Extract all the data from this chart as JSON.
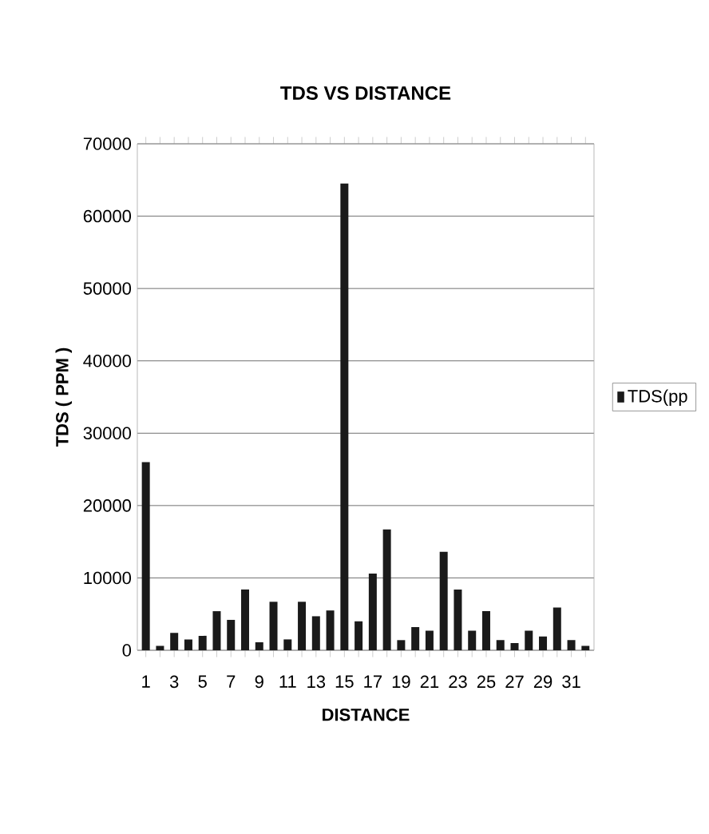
{
  "chart_data": {
    "type": "bar",
    "title": "TDS VS DISTANCE",
    "xlabel": "DISTANCE",
    "ylabel": "TDS ( PPM )",
    "categories": [
      "1",
      null,
      "3",
      null,
      "5",
      null,
      "7",
      null,
      "9",
      null,
      "11",
      null,
      "13",
      null,
      "15",
      null,
      "17",
      null,
      "19",
      null,
      "21",
      null,
      "23",
      null,
      "25",
      null,
      "27",
      null,
      "29",
      null,
      "31",
      null
    ],
    "series": [
      {
        "name": "TDS(pp",
        "color": "#1a1a1a",
        "values": [
          26000,
          600,
          2400,
          1500,
          2000,
          5400,
          4200,
          8400,
          1100,
          6700,
          1500,
          6700,
          4700,
          5500,
          64500,
          4000,
          10600,
          16700,
          1400,
          3200,
          2700,
          13600,
          8400,
          2700,
          5400,
          1400,
          1000,
          2700,
          1900,
          5900,
          1400,
          600
        ]
      }
    ],
    "ylim": [
      0,
      70000
    ],
    "yticks": [
      0,
      10000,
      20000,
      30000,
      40000,
      50000,
      60000,
      70000
    ],
    "grid": "y",
    "legend": "right"
  }
}
